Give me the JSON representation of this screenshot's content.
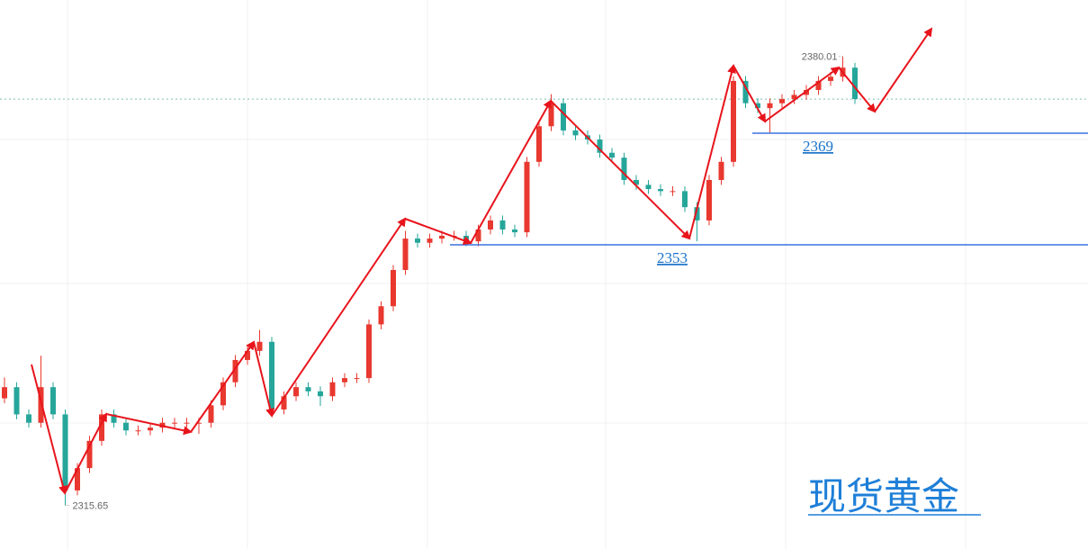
{
  "chart_data": {
    "type": "candlestick",
    "ylim": [
      2309.4,
      2388.1
    ],
    "up_color": "#e8382f",
    "down_color": "#26a69a",
    "open": [
      2331.0,
      2332.6,
      2328.7,
      2327.5,
      2332.6,
      2328.7,
      2317.8,
      2321.0,
      2324.9,
      2328.7,
      2327.5,
      2326.4,
      2326.4,
      2326.8,
      2327.5,
      2327.5,
      2327.5,
      2327.5,
      2330.0,
      2333.3,
      2336.5,
      2337.8,
      2339.1,
      2329.4,
      2331.3,
      2332.6,
      2332.0,
      2331.3,
      2333.3,
      2333.9,
      2333.9,
      2341.6,
      2344.2,
      2349.4,
      2353.9,
      2353.3,
      2353.9,
      2354.3,
      2354.3,
      2353.5,
      2355.2,
      2356.5,
      2355.2,
      2354.8,
      2364.9,
      2370.0,
      2373.3,
      2369.4,
      2368.7,
      2368.1,
      2366.2,
      2365.5,
      2362.3,
      2361.6,
      2361.0,
      2360.7,
      2360.7,
      2358.4,
      2356.5,
      2362.3,
      2364.9,
      2376.5,
      2373.3,
      2372.6,
      2373.3,
      2373.9,
      2374.5,
      2375.2,
      2376.5,
      2377.1,
      2378.4
    ],
    "high": [
      2334.0,
      2333.3,
      2329.4,
      2337.1,
      2333.3,
      2329.4,
      2321.7,
      2325.6,
      2329.4,
      2329.4,
      2328.2,
      2327.1,
      2327.5,
      2328.2,
      2328.2,
      2328.2,
      2328.2,
      2330.7,
      2334.0,
      2337.2,
      2338.5,
      2340.8,
      2339.8,
      2332.0,
      2333.3,
      2333.3,
      2332.7,
      2334.0,
      2334.6,
      2334.6,
      2342.3,
      2344.9,
      2350.1,
      2355.0,
      2354.6,
      2354.6,
      2355.0,
      2355.0,
      2355.0,
      2355.9,
      2357.2,
      2357.2,
      2355.9,
      2365.6,
      2370.7,
      2374.6,
      2374.0,
      2370.1,
      2369.4,
      2368.8,
      2366.9,
      2366.2,
      2363.0,
      2362.3,
      2361.7,
      2361.4,
      2361.4,
      2359.1,
      2363.0,
      2365.6,
      2377.2,
      2377.2,
      2374.0,
      2374.0,
      2374.6,
      2375.2,
      2375.9,
      2377.2,
      2377.8,
      2380.01,
      2379.1
    ],
    "low": [
      2330.3,
      2328.0,
      2326.8,
      2326.8,
      2328.0,
      2315.65,
      2317.1,
      2320.3,
      2324.2,
      2326.8,
      2325.7,
      2325.7,
      2325.7,
      2326.1,
      2326.8,
      2326.8,
      2325.9,
      2326.8,
      2329.3,
      2332.6,
      2335.8,
      2337.1,
      2328.7,
      2328.7,
      2330.6,
      2331.3,
      2329.9,
      2330.6,
      2332.6,
      2333.2,
      2333.2,
      2340.9,
      2343.5,
      2348.7,
      2352.6,
      2352.6,
      2353.2,
      2353.6,
      2352.8,
      2352.8,
      2354.5,
      2354.5,
      2354.1,
      2354.1,
      2364.2,
      2369.3,
      2368.7,
      2368.0,
      2367.4,
      2365.5,
      2364.8,
      2361.6,
      2360.9,
      2360.3,
      2360.0,
      2360.0,
      2357.7,
      2353.5,
      2355.8,
      2361.6,
      2364.2,
      2372.6,
      2371.9,
      2369.1,
      2372.6,
      2373.2,
      2373.8,
      2374.5,
      2375.8,
      2376.4,
      2373.2
    ],
    "close": [
      2332.6,
      2328.7,
      2327.5,
      2332.6,
      2328.7,
      2317.8,
      2321.0,
      2324.9,
      2328.7,
      2327.5,
      2326.4,
      2326.4,
      2326.8,
      2327.5,
      2327.5,
      2327.5,
      2327.5,
      2330.0,
      2333.3,
      2336.5,
      2337.8,
      2339.1,
      2329.4,
      2331.3,
      2332.6,
      2332.0,
      2331.3,
      2333.3,
      2333.9,
      2333.9,
      2341.6,
      2344.2,
      2349.4,
      2353.9,
      2353.3,
      2353.9,
      2354.3,
      2354.3,
      2353.5,
      2355.2,
      2356.5,
      2355.2,
      2354.8,
      2364.9,
      2370.0,
      2373.3,
      2369.4,
      2368.7,
      2368.1,
      2366.2,
      2365.5,
      2362.3,
      2361.6,
      2361.0,
      2360.7,
      2360.7,
      2358.4,
      2356.5,
      2362.3,
      2364.9,
      2376.5,
      2373.3,
      2372.6,
      2373.3,
      2373.9,
      2374.5,
      2375.2,
      2376.5,
      2377.1,
      2378.4,
      2373.9
    ],
    "levels": [
      2353,
      2369
    ],
    "level_color": "#3a73e0",
    "watermark": "现货黄金"
  }
}
